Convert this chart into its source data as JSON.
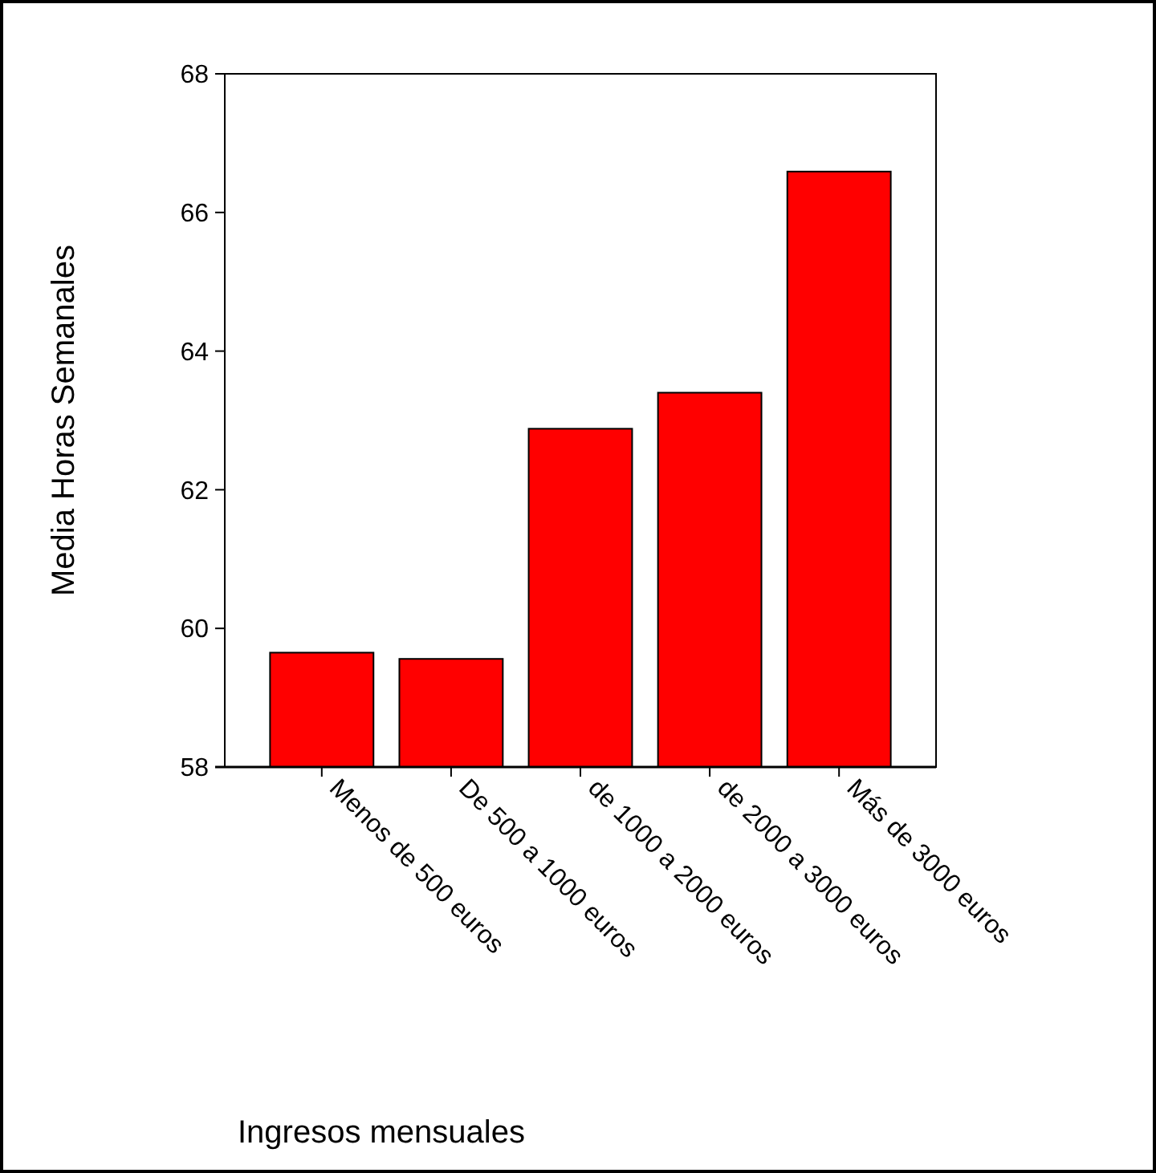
{
  "chart_data": {
    "type": "bar",
    "xlabel": "Ingresos mensuales",
    "ylabel": "Media Horas Semanales",
    "categories": [
      "Menos de 500 euros",
      "De 500 a 1000 euros",
      "de 1000 a 2000 euros",
      "de 2000 a 3000 euros",
      "Más de 3000 euros"
    ],
    "values": [
      59.65,
      59.56,
      62.88,
      63.4,
      66.59
    ],
    "color": "#ff0000",
    "ylim": [
      58,
      68
    ],
    "yticks": [
      58,
      60,
      62,
      64,
      66,
      68
    ]
  }
}
